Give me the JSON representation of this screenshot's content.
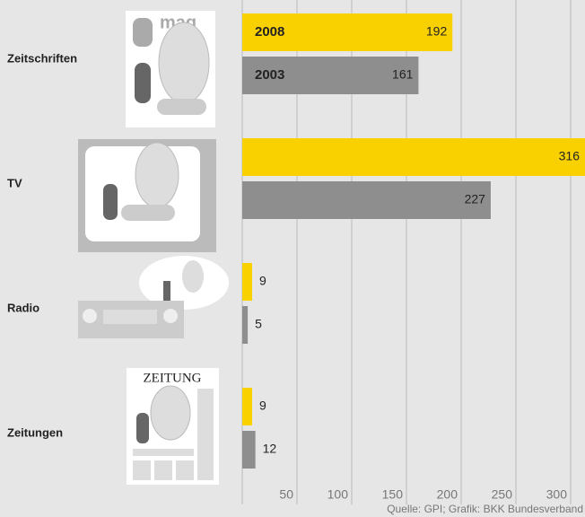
{
  "chart_data": {
    "type": "bar",
    "orientation": "horizontal",
    "categories": [
      "Zeitschriften",
      "TV",
      "Radio",
      "Zeitungen"
    ],
    "series": [
      {
        "name": "2008",
        "color": "#f9d100",
        "values": [
          192,
          316,
          9,
          9
        ]
      },
      {
        "name": "2003",
        "color": "#8e8e8e",
        "values": [
          161,
          227,
          5,
          12
        ]
      }
    ],
    "xlim": [
      0,
      300
    ],
    "xticks": [
      50,
      100,
      150,
      200,
      250,
      300
    ],
    "grid": true,
    "source": "Quelle: GPI; Grafik: BKK Bundesverband",
    "illustration_texts": {
      "magazine": "mag",
      "newspaper": "ZEITUNG"
    }
  }
}
